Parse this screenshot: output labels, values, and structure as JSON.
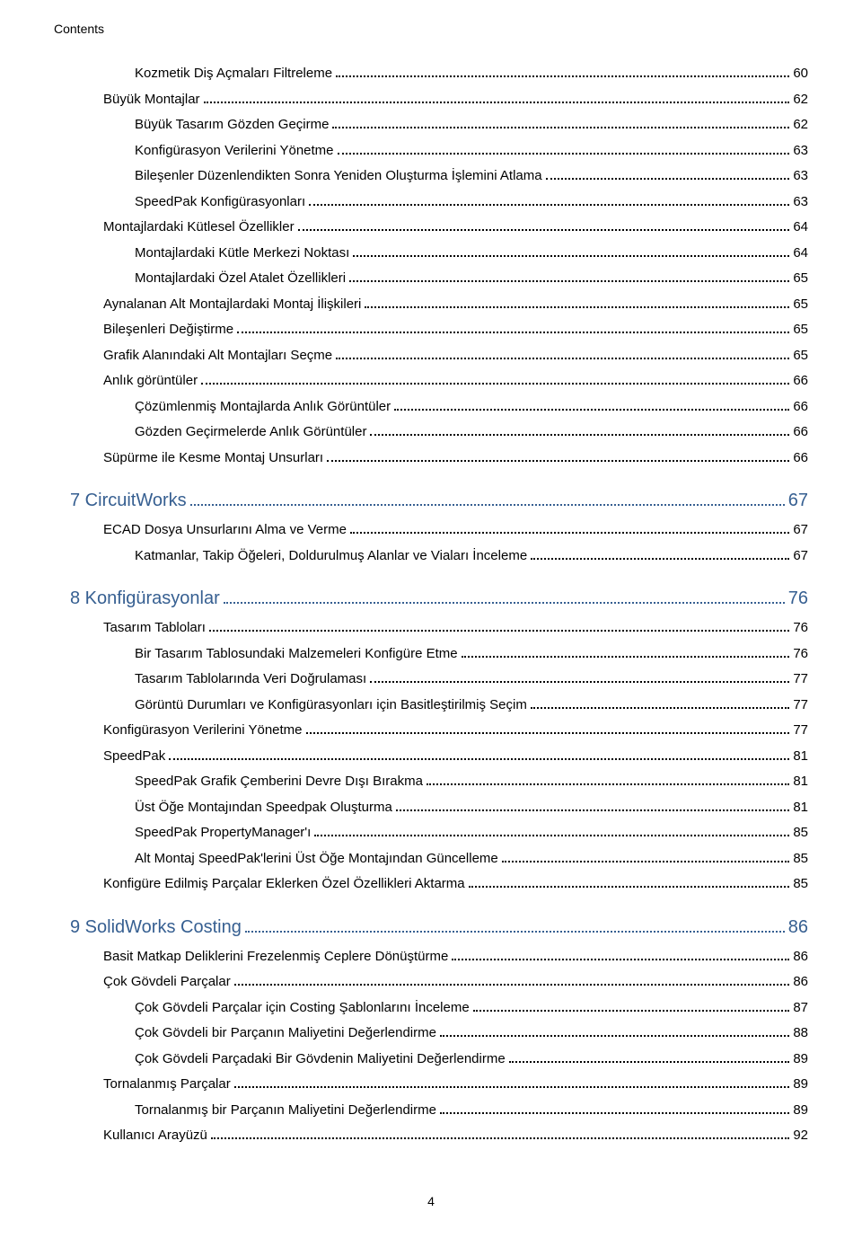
{
  "header": {
    "label": "Contents"
  },
  "footer": {
    "page_number": "4"
  },
  "typography": {
    "body_font_size_pt": 11,
    "chapter_font_size_pt": 15,
    "chapter_color": "#365f91",
    "body_color": "#000000",
    "background_color": "#ffffff",
    "dot_leader_color": "#000000"
  },
  "toc": {
    "entries": [
      {
        "level": 2,
        "title": "Kozmetik Diş Açmaları Filtreleme",
        "page": "60"
      },
      {
        "level": 1,
        "title": "Büyük Montajlar",
        "page": "62"
      },
      {
        "level": 2,
        "title": "Büyük Tasarım Gözden Geçirme",
        "page": "62"
      },
      {
        "level": 2,
        "title": "Konfigürasyon Verilerini Yönetme",
        "page": "63"
      },
      {
        "level": 2,
        "title": "Bileşenler Düzenlendikten Sonra Yeniden Oluşturma İşlemini Atlama",
        "page": "63"
      },
      {
        "level": 2,
        "title": "SpeedPak Konfigürasyonları",
        "page": "63"
      },
      {
        "level": 1,
        "title": "Montajlardaki Kütlesel Özellikler",
        "page": "64"
      },
      {
        "level": 2,
        "title": "Montajlardaki Kütle Merkezi Noktası",
        "page": "64"
      },
      {
        "level": 2,
        "title": "Montajlardaki Özel Atalet Özellikleri",
        "page": "65"
      },
      {
        "level": 1,
        "title": "Aynalanan Alt Montajlardaki Montaj İlişkileri",
        "page": "65"
      },
      {
        "level": 1,
        "title": "Bileşenleri Değiştirme",
        "page": "65"
      },
      {
        "level": 1,
        "title": "Grafik Alanındaki Alt Montajları Seçme",
        "page": "65"
      },
      {
        "level": 1,
        "title": "Anlık görüntüler",
        "page": "66"
      },
      {
        "level": 2,
        "title": "Çözümlenmiş Montajlarda Anlık Görüntüler",
        "page": "66"
      },
      {
        "level": 2,
        "title": "Gözden Geçirmelerde Anlık Görüntüler",
        "page": "66"
      },
      {
        "level": 1,
        "title": "Süpürme ile Kesme Montaj Unsurları",
        "page": "66"
      },
      {
        "level": "chapter",
        "title": "7 CircuitWorks",
        "page": "67"
      },
      {
        "level": 1,
        "title": "ECAD Dosya Unsurlarını Alma ve Verme",
        "page": "67"
      },
      {
        "level": 2,
        "title": "Katmanlar, Takip Öğeleri, Doldurulmuş Alanlar ve Viaları İnceleme",
        "page": "67"
      },
      {
        "level": "chapter",
        "title": "8 Konfigürasyonlar",
        "page": "76"
      },
      {
        "level": 1,
        "title": "Tasarım Tabloları",
        "page": "76"
      },
      {
        "level": 2,
        "title": "Bir Tasarım Tablosundaki Malzemeleri Konfigüre Etme",
        "page": "76"
      },
      {
        "level": 2,
        "title": "Tasarım Tablolarında Veri Doğrulaması",
        "page": "77"
      },
      {
        "level": 2,
        "title": "Görüntü Durumları ve Konfigürasyonları için Basitleştirilmiş Seçim",
        "page": "77"
      },
      {
        "level": 1,
        "title": "Konfigürasyon Verilerini Yönetme",
        "page": "77"
      },
      {
        "level": 1,
        "title": "SpeedPak",
        "page": "81"
      },
      {
        "level": 2,
        "title": "SpeedPak Grafik Çemberini Devre Dışı Bırakma",
        "page": "81"
      },
      {
        "level": 2,
        "title": "Üst Öğe Montajından Speedpak Oluşturma",
        "page": "81"
      },
      {
        "level": 2,
        "title": "SpeedPak PropertyManager'ı",
        "page": "85"
      },
      {
        "level": 2,
        "title": "Alt Montaj SpeedPak'lerini Üst Öğe Montajından Güncelleme",
        "page": "85"
      },
      {
        "level": 1,
        "title": "Konfigüre Edilmiş Parçalar Eklerken Özel Özellikleri Aktarma",
        "page": "85"
      },
      {
        "level": "chapter",
        "title": "9 SolidWorks Costing",
        "page": "86"
      },
      {
        "level": 1,
        "title": "Basit Matkap Deliklerini Frezelenmiş Ceplere Dönüştürme",
        "page": "86"
      },
      {
        "level": 1,
        "title": "Çok Gövdeli Parçalar",
        "page": "86"
      },
      {
        "level": 2,
        "title": "Çok Gövdeli Parçalar için Costing Şablonlarını İnceleme",
        "page": "87"
      },
      {
        "level": 2,
        "title": "Çok Gövdeli bir Parçanın Maliyetini Değerlendirme",
        "page": "88"
      },
      {
        "level": 2,
        "title": "Çok Gövdeli Parçadaki Bir Gövdenin Maliyetini Değerlendirme",
        "page": "89"
      },
      {
        "level": 1,
        "title": "Tornalanmış Parçalar",
        "page": "89"
      },
      {
        "level": 2,
        "title": "Tornalanmış bir Parçanın Maliyetini Değerlendirme",
        "page": "89"
      },
      {
        "level": 1,
        "title": "Kullanıcı Arayüzü",
        "page": "92"
      }
    ]
  }
}
